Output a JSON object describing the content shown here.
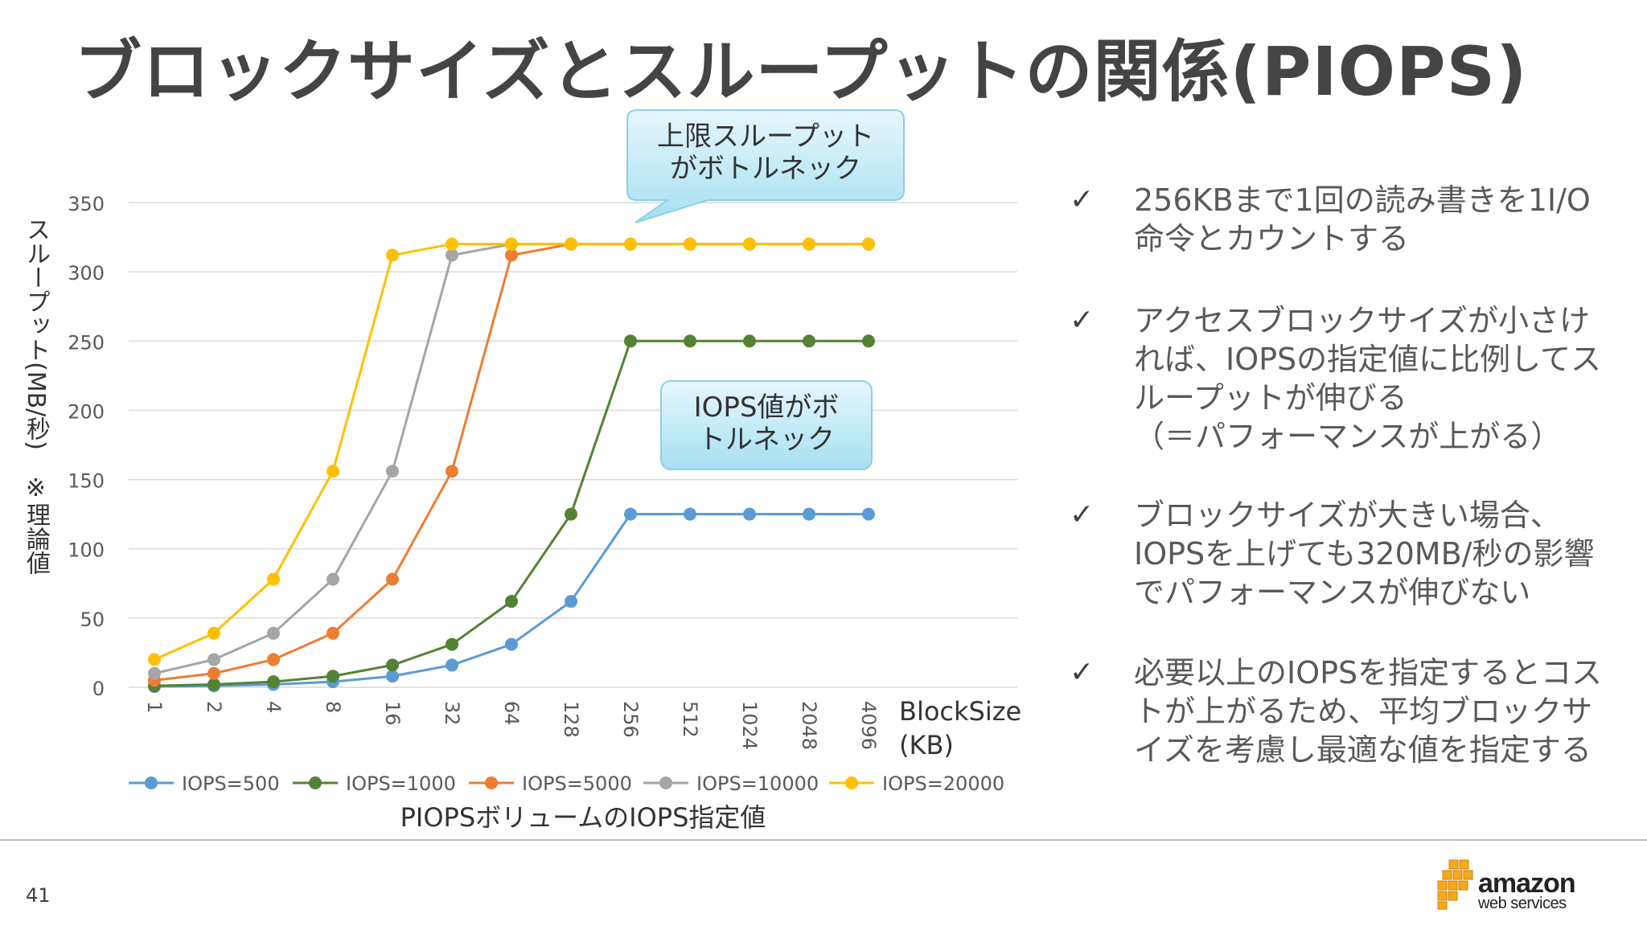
{
  "slide": {
    "title": "ブロックサイズとスループットの関係(PIOPS)",
    "page_number": "41",
    "logo_line1": "amazon",
    "logo_line2": "web services",
    "bullet_glyph": "✓"
  },
  "callouts": [
    {
      "lines": [
        "上限スループット",
        "がボトルネック"
      ]
    },
    {
      "lines": [
        "IOPS値がボ",
        "トルネック"
      ]
    }
  ],
  "bullets": [
    {
      "lines": [
        "256KBまで1回の読み書きを1I/O",
        "命令とカウントする"
      ]
    },
    {
      "lines": [
        "アクセスブロックサイズが小さけ",
        "れば、IOPSの指定値に比例してス",
        "ループットが伸びる",
        "（＝パフォーマンスが上がる）"
      ]
    },
    {
      "lines": [
        "ブロックサイズが大きい場合、",
        "IOPSを上げても320MB/秒の影響",
        "でパフォーマンスが伸びない"
      ]
    },
    {
      "lines": [
        "必要以上のIOPSを指定するとコス",
        "トが上がるため、平均ブロックサ",
        "イズを考慮し最適な値を指定する"
      ]
    }
  ],
  "chart_data": {
    "type": "line",
    "title": "",
    "ylabel": "スループット(MB/秒)　※理論値",
    "xlabel": "BlockSize (KB)",
    "xlabel_lines": [
      "BlockSize",
      "(KB)"
    ],
    "legend_title": "PIOPSボリュームのIOPS指定値",
    "legend_position": "bottom",
    "ylim": [
      0,
      350
    ],
    "yticks": [
      0,
      50,
      100,
      150,
      200,
      250,
      300,
      350
    ],
    "grid": true,
    "categories": [
      "1",
      "2",
      "4",
      "8",
      "16",
      "32",
      "64",
      "128",
      "256",
      "512",
      "1024",
      "2048",
      "4096"
    ],
    "series": [
      {
        "name": "IOPS=500",
        "color": "#5B9BD5",
        "values": [
          0.5,
          1,
          2,
          4,
          8,
          16,
          31,
          62,
          125,
          125,
          125,
          125,
          125
        ]
      },
      {
        "name": "IOPS=1000",
        "color": "#548235",
        "values": [
          1,
          2,
          4,
          8,
          16,
          31,
          62,
          125,
          250,
          250,
          250,
          250,
          250
        ]
      },
      {
        "name": "IOPS=5000",
        "color": "#ED7D31",
        "values": [
          5,
          10,
          20,
          39,
          78,
          156,
          312,
          320,
          320,
          320,
          320,
          320,
          320
        ]
      },
      {
        "name": "IOPS=10000",
        "color": "#A5A5A5",
        "values": [
          10,
          20,
          39,
          78,
          156,
          312,
          320,
          320,
          320,
          320,
          320,
          320,
          320
        ]
      },
      {
        "name": "IOPS=20000",
        "color": "#FFC000",
        "values": [
          20,
          39,
          78,
          156,
          312,
          320,
          320,
          320,
          320,
          320,
          320,
          320,
          320
        ]
      }
    ]
  }
}
